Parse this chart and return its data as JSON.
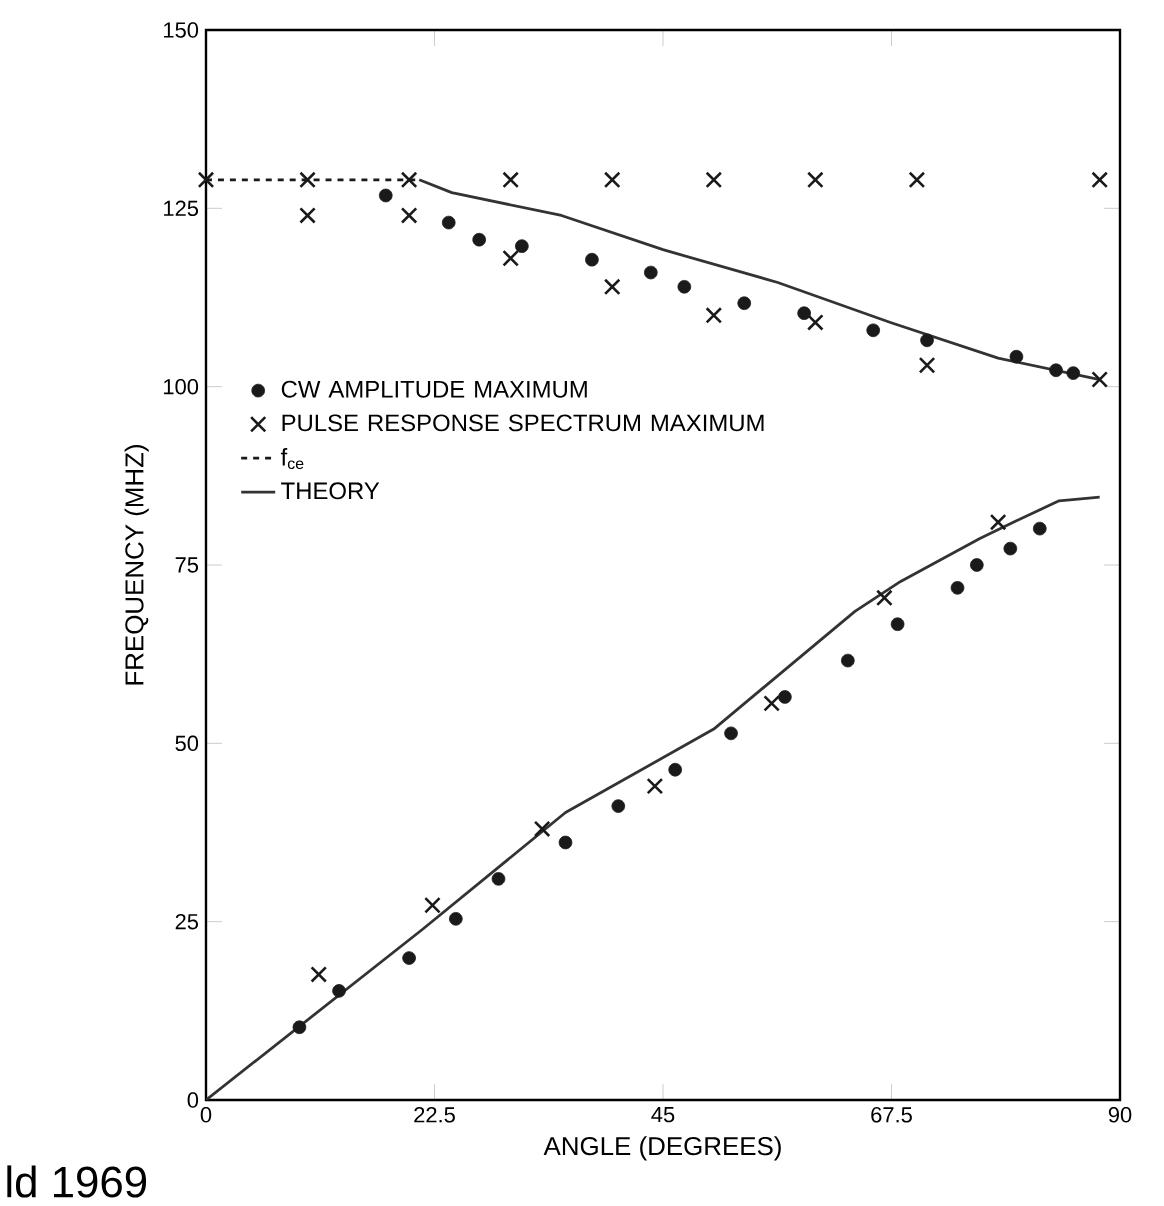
{
  "chart_data": {
    "type": "scatter",
    "xlabel": "ANGLE (DEGREES)",
    "ylabel": "FREQUENCY (MHZ)",
    "xlim": [
      0,
      90
    ],
    "ylim": [
      0,
      150
    ],
    "xticks": [
      0,
      22.5,
      45,
      67.5,
      90
    ],
    "yticks": [
      0,
      25,
      50,
      75,
      100,
      125,
      150
    ],
    "grid": false,
    "legend": "left",
    "annotations": [
      "ld 1969"
    ],
    "series": [
      {
        "name": "CW AMPLITUDE MAXIMUM",
        "marker": "circle",
        "color": "#1a1a1a",
        "x": [
          17.7,
          23.9,
          26.9,
          31.1,
          38,
          43.8,
          47.1,
          53,
          58.9,
          65.7,
          71,
          79.8,
          83.7,
          85.4,
          9.2,
          13.1,
          20,
          24.6,
          28.8,
          35.4,
          40.6,
          46.2,
          51.7,
          57,
          63.2,
          68.1,
          74,
          75.9,
          79.2,
          82.1
        ],
        "values": [
          126.8,
          123,
          120.6,
          119.7,
          117.8,
          116,
          114,
          111.7,
          110.3,
          107.9,
          106.5,
          104.2,
          102.3,
          101.9,
          10.2,
          15.3,
          19.9,
          25.4,
          31,
          36.1,
          41.2,
          46.3,
          51.4,
          56.5,
          61.6,
          66.7,
          71.8,
          75,
          77.3,
          80.1
        ]
      },
      {
        "name": "PULSE RESPONSE SPECTRUM MAXIMUM",
        "marker": "cross",
        "color": "#1a1a1a",
        "x": [
          0,
          10,
          20,
          30,
          40,
          50,
          60,
          70,
          88,
          10,
          20,
          30,
          40,
          50,
          60,
          71,
          88,
          11.1,
          22.3,
          33.1,
          44.2,
          55.7,
          66.8,
          78
        ],
        "values": [
          129,
          129,
          129,
          129,
          129,
          129,
          129,
          129,
          129,
          124,
          124,
          118,
          114,
          110,
          109,
          103,
          101,
          17.6,
          27.3,
          38,
          44,
          55.6,
          70.4,
          81
        ]
      },
      {
        "name": "f$_{ce}$",
        "type": "line",
        "line_style": "dashed",
        "marker": "none",
        "color": "#1a1a1a",
        "x": [
          0,
          21
        ],
        "values": [
          129,
          129
        ]
      },
      {
        "name": "THEORY",
        "type": "line",
        "line_style": "solid",
        "marker": "none",
        "color": "#333333",
        "x": [
          21,
          24.2,
          35,
          45,
          56.3,
          67.4,
          78,
          88
        ],
        "values": [
          129,
          127.2,
          124,
          119.2,
          114.6,
          109,
          104,
          101
        ]
      },
      {
        "type": "line",
        "line_style": "solid",
        "marker": "none",
        "color": "#333333",
        "x": [
          0,
          21.3,
          35.4,
          50,
          63.9,
          68.4,
          76.2,
          79.5,
          84,
          88
        ],
        "values": [
          0,
          23.9,
          40.3,
          52,
          68.5,
          72.7,
          78.7,
          81,
          84,
          84.5
        ]
      }
    ]
  }
}
